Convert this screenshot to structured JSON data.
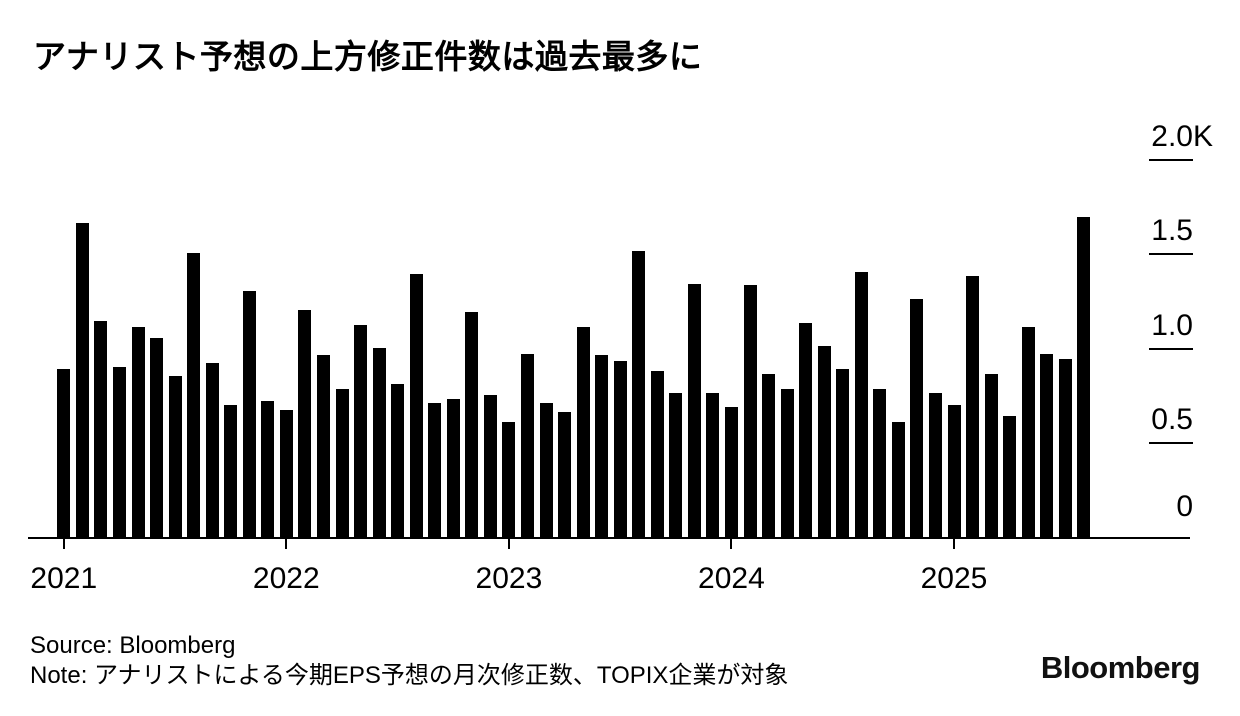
{
  "page": {
    "background": "#ffffff",
    "text_color": "#000000"
  },
  "header": {
    "title": "アナリスト予想の上方修正件数は過去最多に"
  },
  "chart_data": {
    "type": "bar",
    "title": "アナリスト予想の上方修正件数は過去最多に",
    "bar_color": "#000000",
    "frequency": "monthly",
    "x_start": "2021-01",
    "x_end": "2025-08",
    "values": [
      890,
      1660,
      1140,
      900,
      1110,
      1050,
      850,
      1500,
      920,
      700,
      1300,
      720,
      670,
      1200,
      960,
      780,
      1120,
      1000,
      810,
      1390,
      710,
      730,
      1190,
      750,
      610,
      970,
      710,
      660,
      1110,
      960,
      930,
      1510,
      880,
      760,
      1340,
      760,
      690,
      1330,
      860,
      780,
      1130,
      1010,
      890,
      1400,
      780,
      610,
      1260,
      760,
      700,
      1380,
      860,
      640,
      1110,
      970,
      940,
      1690
    ],
    "xticks": [
      "2021",
      "2022",
      "2023",
      "2024",
      "2025"
    ],
    "yticks": [
      {
        "label": "2.0",
        "suffix": "K",
        "value": 2000,
        "show_tick": true
      },
      {
        "label": "1.5",
        "suffix": "",
        "value": 1500,
        "show_tick": true
      },
      {
        "label": "1.0",
        "suffix": "",
        "value": 1000,
        "show_tick": true
      },
      {
        "label": "0.5",
        "suffix": "",
        "value": 500,
        "show_tick": true
      },
      {
        "label": "0",
        "suffix": "",
        "value": 0,
        "show_tick": false
      }
    ],
    "ylim": [
      0,
      2000
    ],
    "grid": false,
    "legend": false
  },
  "footer": {
    "source": "Source: Bloomberg",
    "note": "Note: アナリストによる今期EPS予想の月次修正数、TOPIX企業が対象",
    "brand": "Bloomberg"
  }
}
